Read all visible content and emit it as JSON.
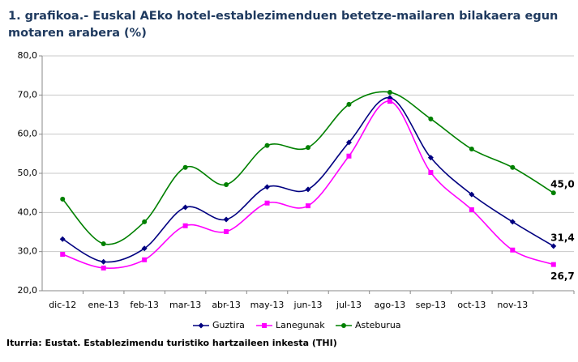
{
  "chart_data": {
    "type": "line",
    "title": "1. grafikoa.- Euskal AEko hotel-establezimenduen betetze-mailaren bilakaera egun motaren arabera (%)",
    "source": "Iturria: Eustat. Establezimendu turistiko hartzaileen inkesta (THI)",
    "categories": [
      "dic-12",
      "ene-13",
      "feb-13",
      "mar-13",
      "abr-13",
      "may-13",
      "jun-13",
      "jul-13",
      "ago-13",
      "sep-13",
      "oct-13",
      "nov-13",
      null
    ],
    "series": [
      {
        "name": "Guztira",
        "color": "#000080",
        "marker": "diamond",
        "values": [
          33.2,
          27.4,
          30.8,
          41.3,
          38.2,
          46.5,
          45.9,
          57.9,
          69.3,
          54.0,
          44.6,
          37.6,
          31.4
        ],
        "value_labels": [
          null,
          null,
          null,
          null,
          null,
          null,
          null,
          null,
          null,
          null,
          null,
          null,
          "31,4"
        ]
      },
      {
        "name": "Lanegunak",
        "color": "#ff00ff",
        "marker": "square",
        "values": [
          29.3,
          25.8,
          27.9,
          36.6,
          35.1,
          42.4,
          41.7,
          54.4,
          68.4,
          50.2,
          40.7,
          30.4,
          26.7
        ],
        "value_labels": [
          null,
          null,
          null,
          null,
          null,
          null,
          null,
          null,
          null,
          null,
          null,
          null,
          "26,7"
        ]
      },
      {
        "name": "Asteburua",
        "color": "#008000",
        "marker": "circle",
        "values": [
          43.4,
          32.0,
          37.6,
          51.5,
          47.1,
          57.1,
          56.6,
          67.6,
          70.7,
          63.9,
          56.2,
          51.5,
          45.0
        ],
        "value_labels": [
          null,
          null,
          null,
          null,
          null,
          null,
          null,
          null,
          null,
          null,
          null,
          null,
          "45,0"
        ]
      }
    ],
    "ylim": [
      20,
      80
    ],
    "yticks": [
      {
        "value": 20,
        "label": "20,0"
      },
      {
        "value": 30,
        "label": "30,0"
      },
      {
        "value": 40,
        "label": "40,0"
      },
      {
        "value": 50,
        "label": "50,0"
      },
      {
        "value": 60,
        "label": "60,0"
      },
      {
        "value": 70,
        "label": "70,0"
      },
      {
        "value": 80,
        "label": "80,0"
      }
    ],
    "grid": true,
    "legend": "bottom",
    "value_label_color": "#7f3f6f"
  }
}
